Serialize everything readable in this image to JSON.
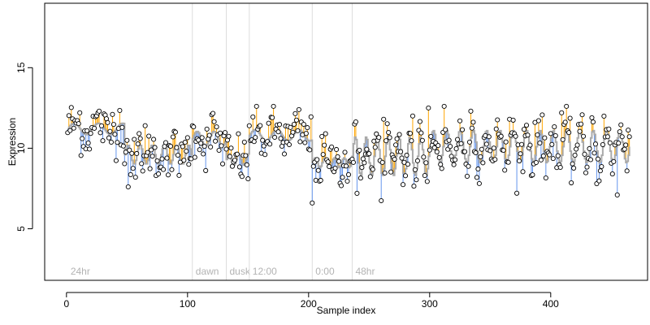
{
  "colors": {
    "background": "#ffffff",
    "axis": "#000000",
    "fit_line": "#aaaaaa",
    "residual_positive": "#ffa500",
    "residual_negative": "#6495ed",
    "point_fill": "#ffffff",
    "point_stroke": "#000000",
    "phase_line": "#dddddd",
    "phase_text": "#b3b3b3"
  },
  "chart_data": {
    "type": "scatter",
    "title": "",
    "xlabel": "Sample index",
    "ylabel": "Expression",
    "xlim": [
      -18,
      480
    ],
    "ylim": [
      1.8,
      19
    ],
    "x_ticks": [
      0,
      100,
      200,
      300,
      400
    ],
    "y_ticks": [
      5,
      10,
      15
    ],
    "grid": false,
    "legend": "none",
    "n_samples": 465,
    "phase_markers": [
      {
        "x": 0,
        "label": "24hr",
        "line": false
      },
      {
        "x": 104,
        "label": "dawn",
        "line": true
      },
      {
        "x": 132,
        "label": "dusk",
        "line": true
      },
      {
        "x": 151,
        "label": "12:00",
        "line": true
      },
      {
        "x": 203,
        "label": "0:00",
        "line": true
      },
      {
        "x": 236,
        "label": "48hr",
        "line": true
      }
    ],
    "fit_segments": [
      {
        "x_start": 1,
        "x_end": 48,
        "level": 11.2,
        "amplitude": 0.35,
        "period": 20
      },
      {
        "x_start": 48,
        "x_end": 104,
        "level": 9.6,
        "amplitude": 0.6,
        "period": 10
      },
      {
        "x_start": 104,
        "x_end": 132,
        "level": 10.6,
        "amplitude": 0.45,
        "period": 14
      },
      {
        "x_start": 132,
        "x_end": 151,
        "level": 9.3,
        "amplitude": 0.35,
        "period": 8
      },
      {
        "x_start": 151,
        "x_end": 203,
        "level": 10.8,
        "amplitude": 0.35,
        "period": 18
      },
      {
        "x_start": 203,
        "x_end": 236,
        "level": 9.1,
        "amplitude": 0.3,
        "period": 8
      },
      {
        "x_start": 236,
        "x_end": 300,
        "level": 9.5,
        "amplitude": 1.2,
        "period": 9
      },
      {
        "x_start": 300,
        "x_end": 466,
        "level": 10.1,
        "amplitude": 1.0,
        "period": 11
      }
    ],
    "residual_sd": 0.75,
    "highlighted_points": [
      {
        "x": 11,
        "y": 12.2
      },
      {
        "x": 27,
        "y": 12.3
      },
      {
        "x": 38,
        "y": 12.1
      },
      {
        "x": 51,
        "y": 7.6
      },
      {
        "x": 57,
        "y": 8.2
      },
      {
        "x": 65,
        "y": 11.4
      },
      {
        "x": 74,
        "y": 8.3
      },
      {
        "x": 90,
        "y": 11.0
      },
      {
        "x": 118,
        "y": 10.8
      },
      {
        "x": 140,
        "y": 9.6
      },
      {
        "x": 150,
        "y": 8.1
      },
      {
        "x": 170,
        "y": 11.9
      },
      {
        "x": 203,
        "y": 6.6
      },
      {
        "x": 214,
        "y": 10.9
      },
      {
        "x": 240,
        "y": 7.2
      },
      {
        "x": 262,
        "y": 11.8
      },
      {
        "x": 286,
        "y": 12.0
      },
      {
        "x": 299,
        "y": 12.5
      },
      {
        "x": 312,
        "y": 12.6
      },
      {
        "x": 334,
        "y": 12.3
      },
      {
        "x": 366,
        "y": 11.8
      },
      {
        "x": 387,
        "y": 11.6
      },
      {
        "x": 409,
        "y": 12.2
      },
      {
        "x": 425,
        "y": 11.5
      },
      {
        "x": 438,
        "y": 7.8
      },
      {
        "x": 455,
        "y": 7.1
      },
      {
        "x": 462,
        "y": 10.2
      }
    ]
  }
}
